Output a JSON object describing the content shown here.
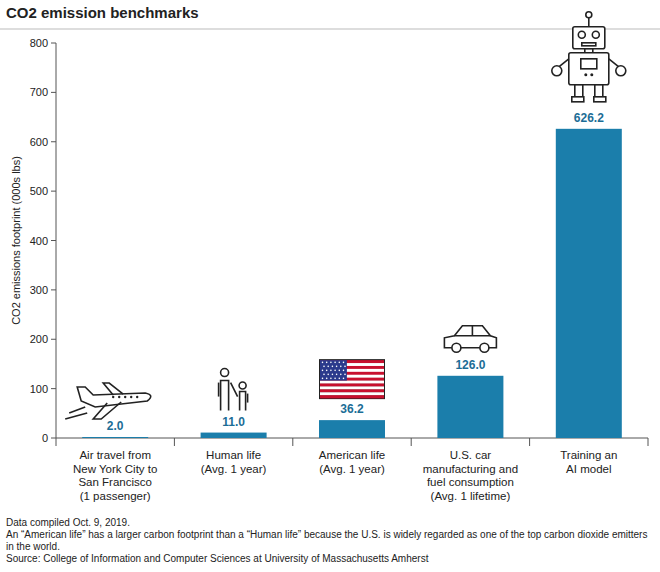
{
  "chart_data": {
    "type": "bar",
    "title": "CO2 emission benchmarks",
    "y_label": "CO2 emissions footprint (000s lbs)",
    "categories": [
      "Air travel from\nNew York City to\nSan Francisco\n(1 passenger)",
      "Human life\n(Avg. 1 year)",
      "American life\n(Avg. 1 year)",
      "U.S. car\nmanufacturing and\nfuel consumption\n(Avg. 1 lifetime)",
      "Training an\nAI model"
    ],
    "values": [
      2,
      11,
      36.2,
      126,
      626.2
    ],
    "value_labels": [
      "2.0",
      "11.0",
      "36.2",
      "126.0",
      "626.2"
    ],
    "color": "#1b7eab",
    "ylim": [
      0,
      800
    ],
    "yticks": [
      0,
      100,
      200,
      300,
      400,
      500,
      600,
      700,
      800
    ],
    "grid": false,
    "data_labels": true,
    "notes": [
      "Data compiled Oct. 9, 2019.",
      "An “American life” has a larger carbon footprint than a “Human life” because the U.S. is widely regarded as one of the top carbon dioxide emitters in the world.",
      "Source: College of Information and Computer Sciences at University of Massachusetts Amherst"
    ]
  }
}
